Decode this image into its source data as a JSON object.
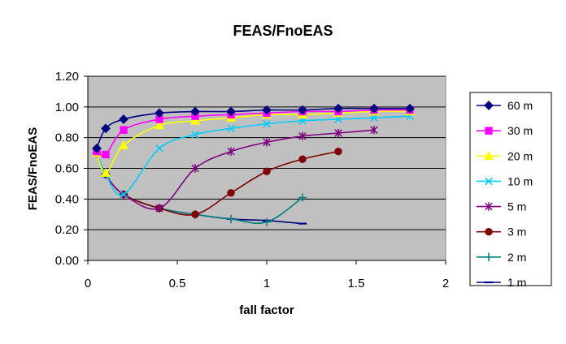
{
  "chart_data": {
    "type": "line",
    "title": "FEAS/FnoEAS",
    "xlabel": "fall factor",
    "ylabel": "FEAS/FnoEAS",
    "xlim": [
      0,
      2
    ],
    "ylim": [
      0,
      1.2
    ],
    "xticks": [
      0,
      0.5,
      1,
      1.5,
      2
    ],
    "xtick_labels": [
      "0",
      "0.5",
      "1",
      "1.5",
      "2"
    ],
    "yticks": [
      0,
      0.2,
      0.4,
      0.6,
      0.8,
      1.0,
      1.2
    ],
    "ytick_labels": [
      "0.00",
      "0.20",
      "0.40",
      "0.60",
      "0.80",
      "1.00",
      "1.20"
    ],
    "grid": "horizontal",
    "legend_position": "right",
    "plot_background": "#c0c0c0",
    "series": [
      {
        "name": "60 m",
        "color": "#000080",
        "marker": "diamond",
        "x": [
          0.05,
          0.1,
          0.2,
          0.4,
          0.6,
          0.8,
          1.0,
          1.2,
          1.4,
          1.6,
          1.8
        ],
        "y": [
          0.73,
          0.86,
          0.92,
          0.96,
          0.97,
          0.97,
          0.98,
          0.98,
          0.99,
          0.99,
          0.99
        ]
      },
      {
        "name": "30 m",
        "color": "#ff00ff",
        "marker": "square",
        "x": [
          0.05,
          0.1,
          0.2,
          0.4,
          0.6,
          0.8,
          1.0,
          1.2,
          1.4,
          1.6,
          1.8
        ],
        "y": [
          0.71,
          0.69,
          0.85,
          0.92,
          0.94,
          0.95,
          0.96,
          0.97,
          0.97,
          0.98,
          0.98
        ]
      },
      {
        "name": "20 m",
        "color": "#ffff00",
        "marker": "triangle",
        "x": [
          0.05,
          0.1,
          0.2,
          0.4,
          0.6,
          0.8,
          1.0,
          1.2,
          1.4,
          1.6,
          1.8
        ],
        "y": [
          0.7,
          0.57,
          0.75,
          0.88,
          0.91,
          0.93,
          0.95,
          0.95,
          0.96,
          0.97,
          0.97
        ]
      },
      {
        "name": "10 m",
        "color": "#00ccff",
        "marker": "x",
        "x": [
          0.05,
          0.1,
          0.2,
          0.4,
          0.6,
          0.8,
          1.0,
          1.2,
          1.4,
          1.6,
          1.8
        ],
        "y": [
          0.7,
          0.56,
          0.43,
          0.73,
          0.82,
          0.86,
          0.89,
          0.91,
          0.92,
          0.93,
          0.94
        ]
      },
      {
        "name": "5 m",
        "color": "#800080",
        "marker": "asterisk",
        "x": [
          0.05,
          0.1,
          0.2,
          0.4,
          0.6,
          0.8,
          1.0,
          1.2,
          1.4,
          1.6
        ],
        "y": [
          0.7,
          0.56,
          0.43,
          0.34,
          0.6,
          0.71,
          0.77,
          0.81,
          0.83,
          0.85
        ]
      },
      {
        "name": "3 m",
        "color": "#800000",
        "marker": "circle",
        "x": [
          0.05,
          0.1,
          0.2,
          0.4,
          0.6,
          0.8,
          1.0,
          1.2,
          1.4
        ],
        "y": [
          0.7,
          0.56,
          0.43,
          0.34,
          0.3,
          0.44,
          0.58,
          0.66,
          0.71
        ]
      },
      {
        "name": "2 m",
        "color": "#008080",
        "marker": "plus",
        "x": [
          0.05,
          0.1,
          0.2,
          0.4,
          0.6,
          0.8,
          1.0,
          1.2
        ],
        "y": [
          0.7,
          0.56,
          0.43,
          0.34,
          0.3,
          0.27,
          0.25,
          0.41
        ]
      },
      {
        "name": "1 m",
        "color": "#000080",
        "marker": "dash",
        "x": [
          0.05,
          0.1,
          0.2,
          0.4,
          0.6,
          0.8,
          1.0,
          1.2
        ],
        "y": [
          0.7,
          0.56,
          0.43,
          0.34,
          0.3,
          0.27,
          0.26,
          0.24
        ]
      }
    ]
  }
}
